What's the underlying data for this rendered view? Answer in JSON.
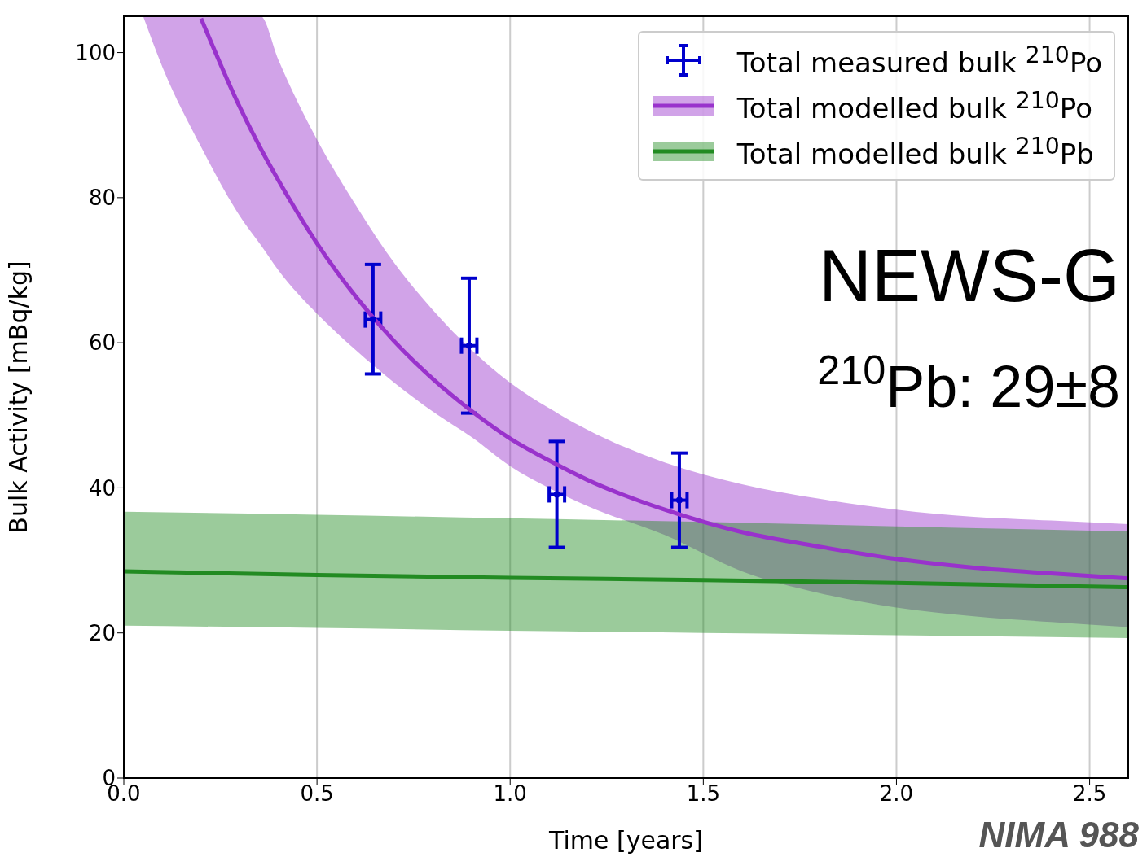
{
  "chart_data": {
    "type": "line",
    "xlabel": "Time [years]",
    "ylabel": "Bulk Activity [mBq/kg]",
    "xlim": [
      0,
      2.6
    ],
    "ylim": [
      0,
      105
    ],
    "xticks": [
      {
        "value": 0,
        "label": "0.0"
      },
      0.5,
      {
        "value": 1,
        "label": "1.0"
      },
      1.5,
      {
        "value": 2,
        "label": "2.0"
      },
      2.5
    ],
    "yticks": [
      0,
      20,
      40,
      60,
      80,
      100
    ],
    "grid": "x",
    "legend": "top right",
    "annotations": [
      "NEWS-G",
      "$^{210}$Pb: 29±8",
      "NIMA 988"
    ],
    "series": [
      {
        "name": "Total measured bulk $^{210}$Po",
        "type": "scatter",
        "marker": "circle",
        "color": "#0000cd",
        "x": [
          0.645,
          0.894,
          1.121,
          1.438
        ],
        "values": [
          63.2,
          59.6,
          39.1,
          38.3
        ],
        "errors": [
          [
            55.7,
            70.8
          ],
          [
            50.3,
            68.9
          ],
          [
            31.8,
            46.4
          ],
          [
            31.8,
            44.8
          ]
        ],
        "xerrors": [
          0.02,
          0.02,
          0.02,
          0.02
        ]
      },
      {
        "name": "Total modelled bulk $^{210}$Po",
        "type": "line",
        "color": "#9932cc",
        "x": [
          0.05,
          0.1,
          0.2,
          0.3,
          0.354,
          0.4,
          0.5,
          0.6,
          0.7,
          0.8,
          0.9,
          1.0,
          1.1,
          1.2,
          1.4,
          1.6,
          1.8,
          2.0,
          2.2,
          2.4,
          2.6
        ],
        "values": [
          null,
          null,
          104.7,
          92.5,
          86.8,
          82.4,
          73.7,
          66.4,
          60.2,
          55.0,
          50.6,
          46.8,
          43.8,
          41.1,
          37.0,
          33.9,
          31.9,
          30.2,
          29.0,
          28.2,
          27.5
        ],
        "lower": [
          105,
          98,
          87,
          77.5,
          73.5,
          70,
          64,
          59,
          54.5,
          50.5,
          47,
          43,
          40,
          37.5,
          33.5,
          28.5,
          25.5,
          23.5,
          22.3,
          21.5,
          20.8
        ],
        "upper": [
          105,
          105,
          105,
          105,
          105,
          99,
          88,
          79,
          71,
          64.5,
          59,
          54.5,
          51,
          48,
          43.5,
          40.5,
          38.5,
          37,
          36,
          35.5,
          35
        ]
      },
      {
        "name": "Total modelled bulk $^{210}$Pb",
        "color": "#228b22",
        "x": [
          0,
          0.5,
          1,
          1.5,
          2,
          2.6
        ],
        "values": [
          28.5,
          28.0,
          27.6,
          27.3,
          26.9,
          26.3
        ],
        "lower": [
          21.0,
          20.7,
          20.3,
          20.0,
          19.7,
          19.3
        ],
        "upper": [
          36.7,
          36.3,
          35.8,
          35.3,
          34.7,
          34.0
        ]
      }
    ]
  }
}
